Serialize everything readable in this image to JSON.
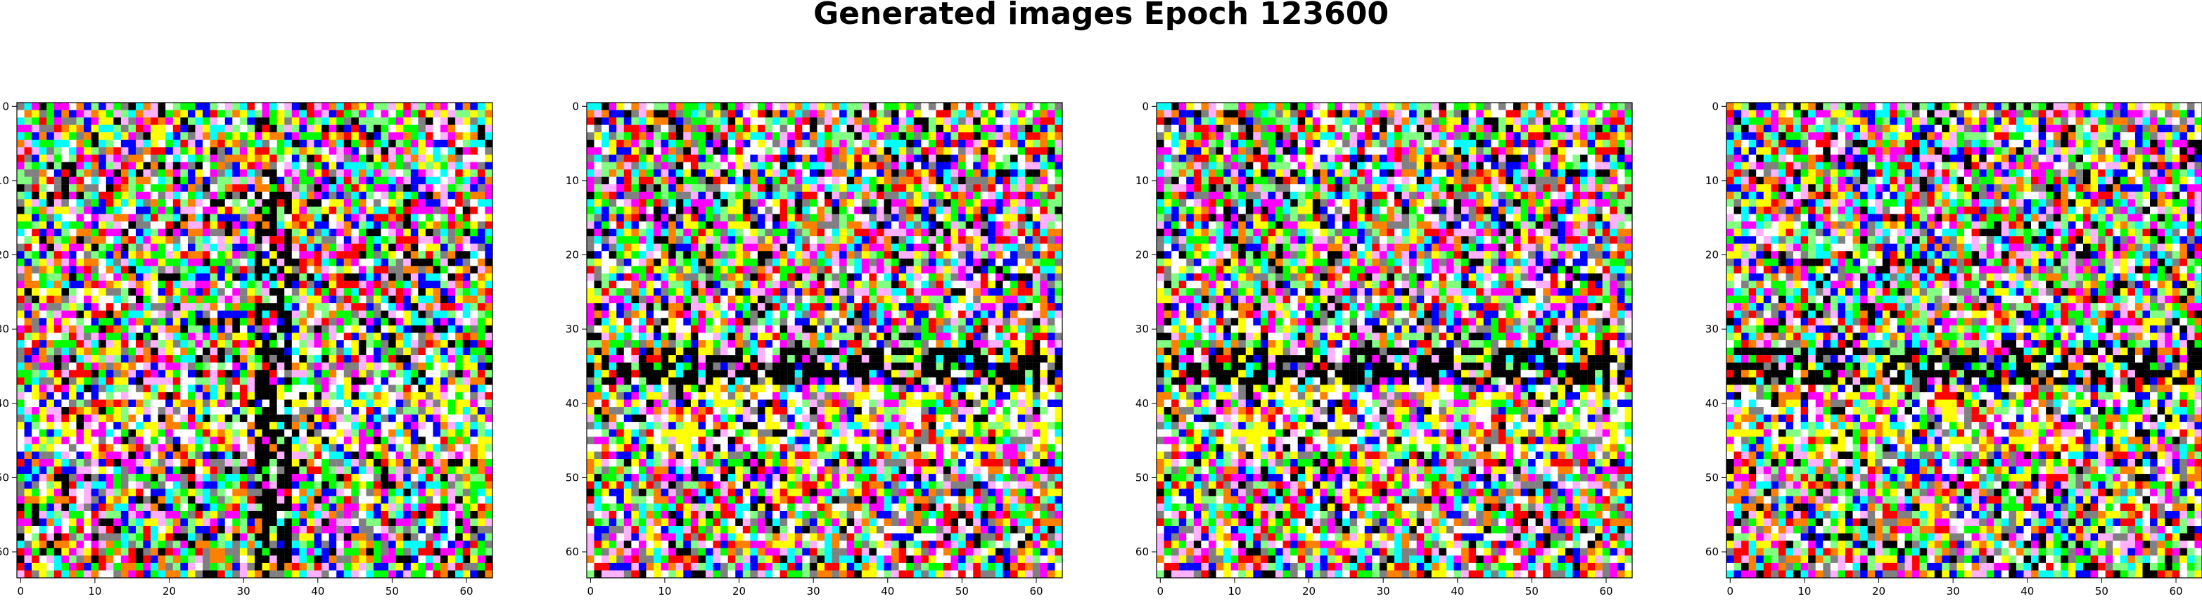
{
  "figure": {
    "title": "Generated images Epoch 123600"
  },
  "chart_data": [
    {
      "type": "heatmap",
      "content": "generated-image",
      "seed": 7,
      "black_band": "vertical",
      "x_ticks": [
        0,
        10,
        20,
        30,
        40,
        50,
        60
      ],
      "y_ticks": [
        0,
        10,
        20,
        30,
        40,
        50,
        60
      ],
      "xlim": [
        -0.5,
        63.5
      ],
      "ylim": [
        63.5,
        -0.5
      ],
      "grid": false
    },
    {
      "type": "heatmap",
      "content": "generated-image",
      "seed": 21,
      "black_band": "horizontal",
      "x_ticks": [
        0,
        10,
        20,
        30,
        40,
        50,
        60
      ],
      "y_ticks": [
        0,
        10,
        20,
        30,
        40,
        50,
        60
      ],
      "xlim": [
        -0.5,
        63.5
      ],
      "ylim": [
        63.5,
        -0.5
      ],
      "grid": false
    },
    {
      "type": "heatmap",
      "content": "generated-image",
      "seed": 21,
      "black_band": "horizontal",
      "x_ticks": [
        0,
        10,
        20,
        30,
        40,
        50,
        60
      ],
      "y_ticks": [
        0,
        10,
        20,
        30,
        40,
        50,
        60
      ],
      "xlim": [
        -0.5,
        63.5
      ],
      "ylim": [
        63.5,
        -0.5
      ],
      "grid": false
    },
    {
      "type": "heatmap",
      "content": "generated-image",
      "seed": 22,
      "black_band": "horizontal",
      "x_ticks": [
        0,
        10,
        20,
        30,
        40,
        50,
        60
      ],
      "y_ticks": [
        0,
        10,
        20,
        30,
        40,
        50,
        60
      ],
      "xlim": [
        -0.5,
        63.5
      ],
      "ylim": [
        63.5,
        -0.5
      ],
      "grid": false
    }
  ],
  "palette": [
    "#ffffff",
    "#ffff00",
    "#00ff00",
    "#00ffff",
    "#ff00ff",
    "#ff0000",
    "#0000ff",
    "#000000",
    "#808080",
    "#ff8000",
    "#80ff80",
    "#ffb0ff"
  ]
}
